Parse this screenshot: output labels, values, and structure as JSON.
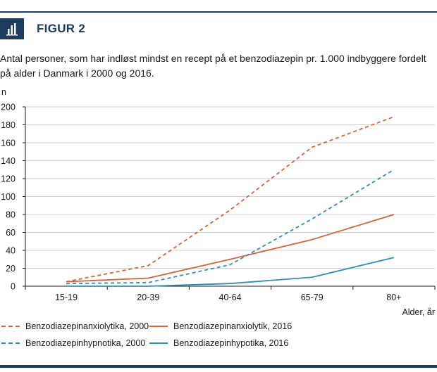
{
  "figure_label": "FIGUR 2",
  "icon": "bar-chart-icon",
  "caption": "Antal personer, som har indløst mindst en recept på et benzodiazepin pr. 1.000 indbyggere fordelt på alder i Danmark i 2000 og 2016.",
  "colors": {
    "navy": "#1d3c5e",
    "orange": "#d9623b",
    "teal": "#2f8fb2",
    "grid": "#cfcfcf"
  },
  "chart_data": {
    "type": "line",
    "ylabel": "n",
    "xlabel": "Alder, år",
    "categories": [
      "15-19",
      "20-39",
      "40-64",
      "65-79",
      "80+"
    ],
    "ylim": [
      0,
      200
    ],
    "yticks": [
      0,
      20,
      40,
      60,
      80,
      100,
      120,
      140,
      160,
      180,
      200
    ],
    "grid": "horizontal",
    "legend_position": "bottom",
    "series": [
      {
        "name": "Benzodiazepinanxiolytika, 2000",
        "values": [
          5,
          23,
          85,
          155,
          189
        ],
        "color": "#d9623b",
        "style": "dashed"
      },
      {
        "name": "Benzodiazepinanxiolytik, 2016",
        "values": [
          5,
          9,
          30,
          52,
          80
        ],
        "color": "#d9623b",
        "style": "solid"
      },
      {
        "name": "Benzodiazepinhypnotika, 2000",
        "values": [
          3,
          4,
          24,
          75,
          130
        ],
        "color": "#2f8fb2",
        "style": "dashed"
      },
      {
        "name": "Benzodiazepinhypotika, 2016",
        "values": [
          0,
          0,
          3,
          10,
          32
        ],
        "color": "#2f8fb2",
        "style": "solid"
      }
    ]
  }
}
